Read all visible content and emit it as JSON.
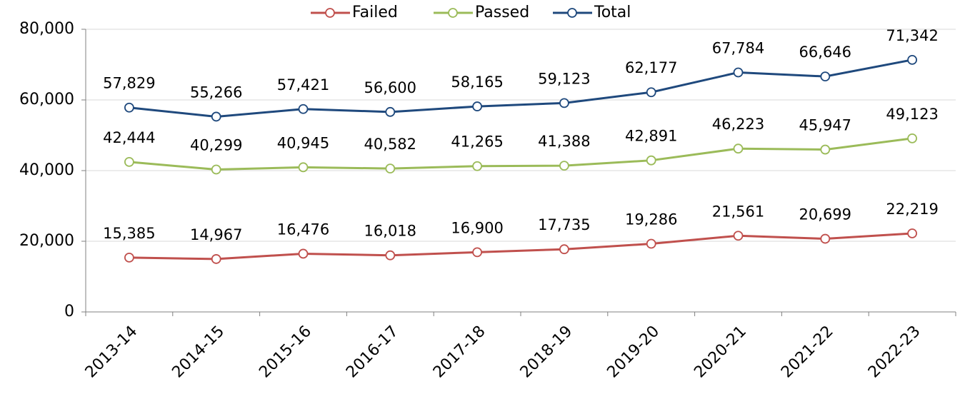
{
  "chart_data": {
    "type": "line",
    "categories": [
      "2013-14",
      "2014-15",
      "2015-16",
      "2016-17",
      "2017-18",
      "2018-19",
      "2019-20",
      "2020-21",
      "2021-22",
      "2022-23"
    ],
    "series": [
      {
        "name": "Failed",
        "color": "#c0504d",
        "values": [
          15385,
          14967,
          16476,
          16018,
          16900,
          17735,
          19286,
          21561,
          20699,
          22219
        ],
        "value_labels": [
          "15,385",
          "14,967",
          "16,476",
          "16,018",
          "16,900",
          "17,735",
          "19,286",
          "21,561",
          "20,699",
          "22,219"
        ]
      },
      {
        "name": "Passed",
        "color": "#9bbb59",
        "values": [
          42444,
          40299,
          40945,
          40582,
          41265,
          41388,
          42891,
          46223,
          45947,
          49123
        ],
        "value_labels": [
          "42,444",
          "40,299",
          "40,945",
          "40,582",
          "41,265",
          "41,388",
          "42,891",
          "46,223",
          "45,947",
          "49,123"
        ]
      },
      {
        "name": "Total",
        "color": "#1f497d",
        "values": [
          57829,
          55266,
          57421,
          56600,
          58165,
          59123,
          62177,
          67784,
          66646,
          71342
        ],
        "value_labels": [
          "57,829",
          "55,266",
          "57,421",
          "56,600",
          "58,165",
          "59,123",
          "62,177",
          "67,784",
          "66,646",
          "71,342"
        ]
      }
    ],
    "ylim": [
      0,
      80000
    ],
    "yticks": [
      0,
      {
        "value": 20000,
        "label": "20,000"
      },
      {
        "value": 40000,
        "label": "40,000"
      },
      {
        "value": 60000,
        "label": "60,000"
      },
      {
        "value": 80000,
        "label": "80,000"
      }
    ],
    "grid": true,
    "legend": "top"
  }
}
